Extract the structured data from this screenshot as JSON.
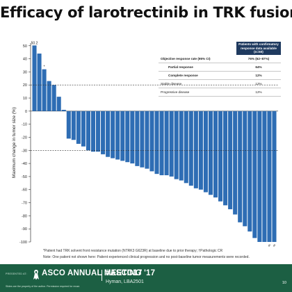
{
  "slide": {
    "title": "Efficacy of larotrectinib in TRK fusion cancers",
    "footnote_1": "*Patient had TRK solvent front resistance mutation (NTRK3 G623R) at baseline due to prior therapy; †Pathologic CR",
    "footnote_2": "Note: One patient not shown here: Patient experienced clinical progression and no post-baseline tumor measurements were recorded.",
    "footer": {
      "presented_by": "PRESENTED AT:",
      "meeting_name": "ASCO ANNUAL MEETING '17",
      "hashtag": "#ASCO17",
      "presenter": "Hyman, LBA2501",
      "disclaimer": "Slides are the property of the author. Permission required for reuse.",
      "page_number": "10",
      "ribbon_icon": "ribbon-icon"
    }
  },
  "response_table": {
    "header": "Patients with confirmatory response data available (n=50)",
    "rows": [
      {
        "label": "Objective response rate (95% CI)",
        "value": "76% (62–87%)",
        "style": "bold"
      },
      {
        "label": "Partial response",
        "value": "64%",
        "style": "bold-indent"
      },
      {
        "label": "Complete response",
        "value": "12%",
        "style": "bold-indent"
      },
      {
        "label": "Stable disease",
        "value": "12%",
        "style": "normal"
      },
      {
        "label": "Progressive disease",
        "value": "12%",
        "style": "normal"
      }
    ]
  },
  "chart_data": {
    "type": "bar",
    "title": "",
    "xlabel": "",
    "ylabel": "Maximum change in tumor size (%)",
    "ylim": [
      -100,
      52
    ],
    "yticks": [
      50,
      40,
      30,
      20,
      10,
      0,
      -10,
      -20,
      -30,
      -40,
      -50,
      -60,
      -70,
      -80,
      -90,
      -100
    ],
    "reference_lines": [
      20,
      -30
    ],
    "bar_color": "#2e6db4",
    "values": [
      50.2,
      44,
      32,
      23,
      20,
      11,
      1,
      -21,
      -22,
      -25,
      -27,
      -30,
      -31,
      -31,
      -33,
      -35,
      -36,
      -37,
      -38,
      -39,
      -40,
      -42,
      -43,
      -44,
      -46,
      -48,
      -49,
      -49,
      -50,
      -52,
      -53,
      -55,
      -57,
      -59,
      -60,
      -62,
      -64,
      -66,
      -69,
      -72,
      -75,
      -79,
      -85,
      -88,
      -92,
      -97,
      -100,
      -100,
      -100,
      -100
    ],
    "data_labels": [
      {
        "index": 0,
        "text": "50.2",
        "position": "above"
      },
      {
        "index": 2,
        "text": "*",
        "position": "above"
      },
      {
        "index": 48,
        "text": "#",
        "position": "below"
      },
      {
        "index": 49,
        "text": "#",
        "position": "below"
      }
    ]
  }
}
